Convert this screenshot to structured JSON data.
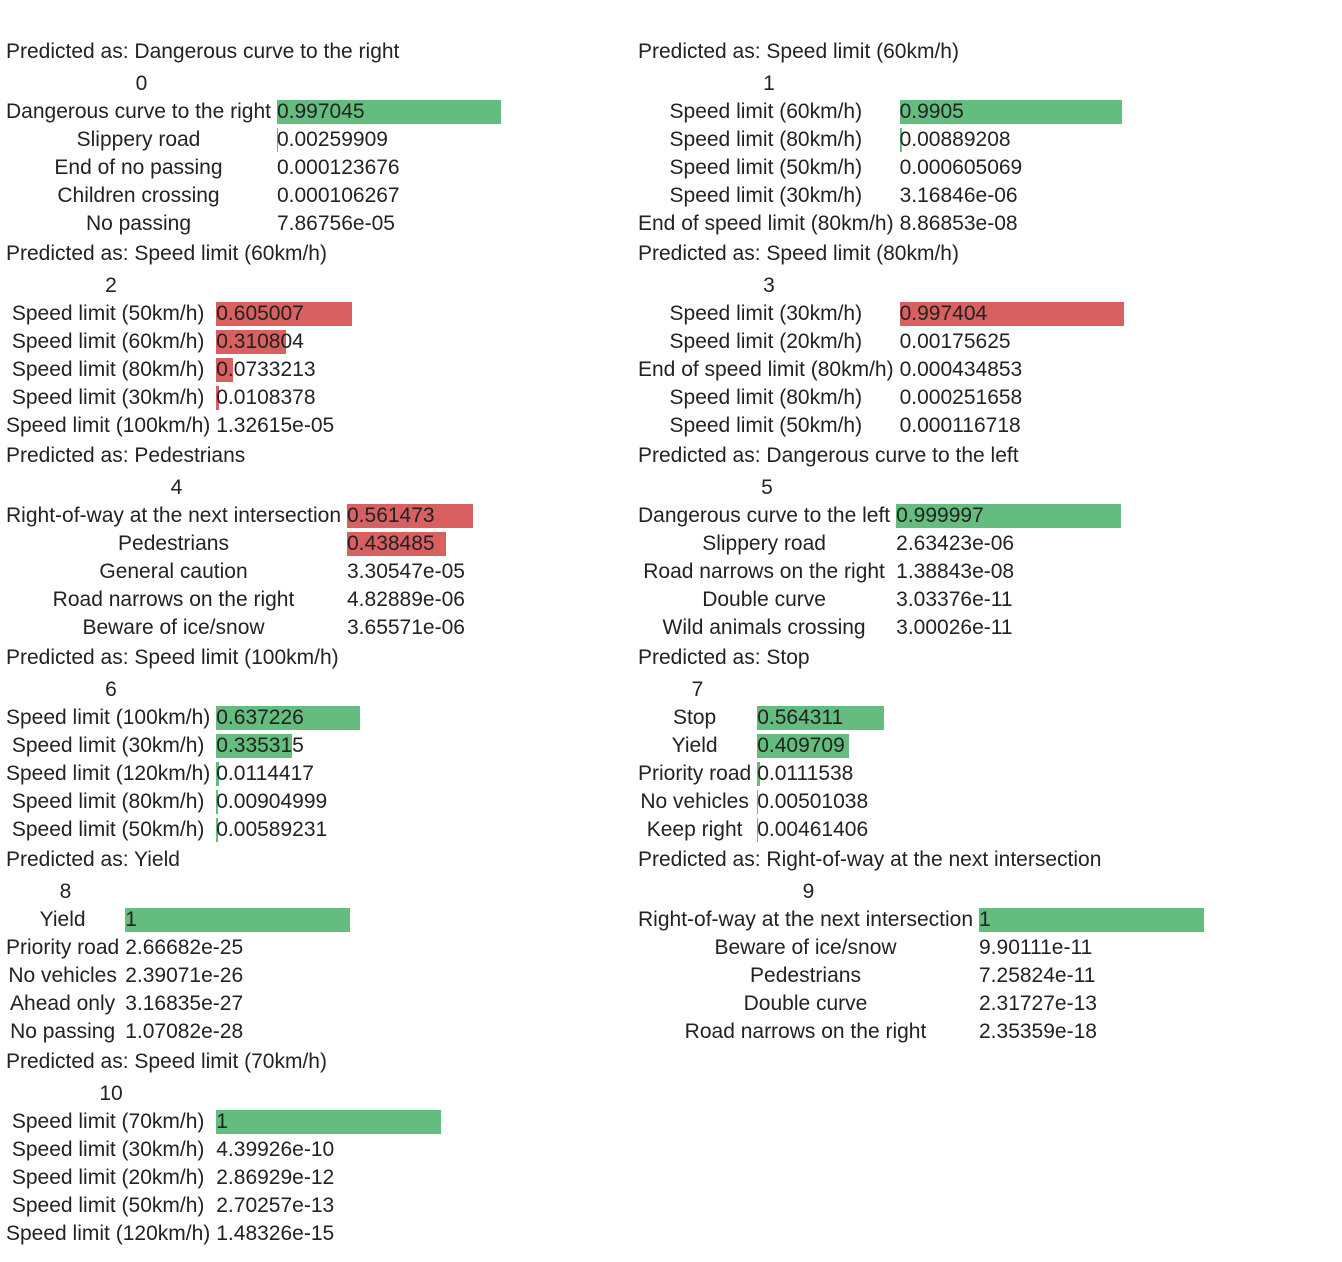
{
  "chart_data": {
    "type": "table",
    "predicted_prefix": "Predicted as: ",
    "bar_scale_max": 1,
    "colors": {
      "correct": "#65bc7f",
      "wrong": "#d86061"
    },
    "panels": [
      {
        "index": "0",
        "predicted": "Dangerous curve to the right",
        "correct": true,
        "rows": [
          {
            "label": "Dangerous curve to the right",
            "value": 0.997045,
            "text": "0.997045"
          },
          {
            "label": "Slippery road",
            "value": 0.00259909,
            "text": "0.00259909"
          },
          {
            "label": "End of no passing",
            "value": 0.000123676,
            "text": "0.000123676"
          },
          {
            "label": "Children crossing",
            "value": 0.000106267,
            "text": "0.000106267"
          },
          {
            "label": "No passing",
            "value": 7.86756e-05,
            "text": "7.86756e-05"
          }
        ]
      },
      {
        "index": "1",
        "predicted": "Speed limit (60km/h)",
        "correct": true,
        "rows": [
          {
            "label": "Speed limit (60km/h)",
            "value": 0.9905,
            "text": "0.9905"
          },
          {
            "label": "Speed limit (80km/h)",
            "value": 0.00889208,
            "text": "0.00889208"
          },
          {
            "label": "Speed limit (50km/h)",
            "value": 0.000605069,
            "text": "0.000605069"
          },
          {
            "label": "Speed limit (30km/h)",
            "value": 3.16846e-06,
            "text": "3.16846e-06"
          },
          {
            "label": "End of speed limit (80km/h)",
            "value": 8.86853e-08,
            "text": "8.86853e-08"
          }
        ]
      },
      {
        "index": "2",
        "predicted": "Speed limit (60km/h)",
        "correct": false,
        "rows": [
          {
            "label": "Speed limit (50km/h)",
            "value": 0.605007,
            "text": "0.605007"
          },
          {
            "label": "Speed limit (60km/h)",
            "value": 0.310804,
            "text": "0.310804"
          },
          {
            "label": "Speed limit (80km/h)",
            "value": 0.0733213,
            "text": "0.0733213"
          },
          {
            "label": "Speed limit (30km/h)",
            "value": 0.0108378,
            "text": "0.0108378"
          },
          {
            "label": "Speed limit (100km/h)",
            "value": 1.32615e-05,
            "text": "1.32615e-05"
          }
        ]
      },
      {
        "index": "3",
        "predicted": "Speed limit (80km/h)",
        "correct": false,
        "rows": [
          {
            "label": "Speed limit (30km/h)",
            "value": 0.997404,
            "text": "0.997404"
          },
          {
            "label": "Speed limit (20km/h)",
            "value": 0.00175625,
            "text": "0.00175625"
          },
          {
            "label": "End of speed limit (80km/h)",
            "value": 0.000434853,
            "text": "0.000434853"
          },
          {
            "label": "Speed limit (80km/h)",
            "value": 0.000251658,
            "text": "0.000251658"
          },
          {
            "label": "Speed limit (50km/h)",
            "value": 0.000116718,
            "text": "0.000116718"
          }
        ]
      },
      {
        "index": "4",
        "predicted": "Pedestrians",
        "correct": false,
        "rows": [
          {
            "label": "Right-of-way at the next intersection",
            "value": 0.561473,
            "text": "0.561473"
          },
          {
            "label": "Pedestrians",
            "value": 0.438485,
            "text": "0.438485"
          },
          {
            "label": "General caution",
            "value": 3.30547e-05,
            "text": "3.30547e-05"
          },
          {
            "label": "Road narrows on the right",
            "value": 4.82889e-06,
            "text": "4.82889e-06"
          },
          {
            "label": "Beware of ice/snow",
            "value": 3.65571e-06,
            "text": "3.65571e-06"
          }
        ]
      },
      {
        "index": "5",
        "predicted": "Dangerous curve to the left",
        "correct": true,
        "rows": [
          {
            "label": "Dangerous curve to the left",
            "value": 0.999997,
            "text": "0.999997"
          },
          {
            "label": "Slippery road",
            "value": 2.63423e-06,
            "text": "2.63423e-06"
          },
          {
            "label": "Road narrows on the right",
            "value": 1.38843e-08,
            "text": "1.38843e-08"
          },
          {
            "label": "Double curve",
            "value": 3.03376e-11,
            "text": "3.03376e-11"
          },
          {
            "label": "Wild animals crossing",
            "value": 3.00026e-11,
            "text": "3.00026e-11"
          }
        ]
      },
      {
        "index": "6",
        "predicted": "Speed limit (100km/h)",
        "correct": true,
        "rows": [
          {
            "label": "Speed limit (100km/h)",
            "value": 0.637226,
            "text": "0.637226"
          },
          {
            "label": "Speed limit (30km/h)",
            "value": 0.335315,
            "text": "0.335315"
          },
          {
            "label": "Speed limit (120km/h)",
            "value": 0.0114417,
            "text": "0.0114417"
          },
          {
            "label": "Speed limit (80km/h)",
            "value": 0.00904999,
            "text": "0.00904999"
          },
          {
            "label": "Speed limit (50km/h)",
            "value": 0.00589231,
            "text": "0.00589231"
          }
        ]
      },
      {
        "index": "7",
        "predicted": "Stop",
        "correct": true,
        "rows": [
          {
            "label": "Stop",
            "value": 0.564311,
            "text": "0.564311"
          },
          {
            "label": "Yield",
            "value": 0.409709,
            "text": "0.409709"
          },
          {
            "label": "Priority road",
            "value": 0.0111538,
            "text": "0.0111538"
          },
          {
            "label": "No vehicles",
            "value": 0.00501038,
            "text": "0.00501038"
          },
          {
            "label": "Keep right",
            "value": 0.00461406,
            "text": "0.00461406"
          }
        ]
      },
      {
        "index": "8",
        "predicted": "Yield",
        "correct": true,
        "rows": [
          {
            "label": "Yield",
            "value": 1,
            "text": "1"
          },
          {
            "label": "Priority road",
            "value": 2.66682e-25,
            "text": "2.66682e-25"
          },
          {
            "label": "No vehicles",
            "value": 2.39071e-26,
            "text": "2.39071e-26"
          },
          {
            "label": "Ahead only",
            "value": 3.16835e-27,
            "text": "3.16835e-27"
          },
          {
            "label": "No passing",
            "value": 1.07082e-28,
            "text": "1.07082e-28"
          }
        ]
      },
      {
        "index": "9",
        "predicted": "Right-of-way at the next intersection",
        "correct": true,
        "rows": [
          {
            "label": "Right-of-way at the next intersection",
            "value": 1,
            "text": "1"
          },
          {
            "label": "Beware of ice/snow",
            "value": 9.90111e-11,
            "text": "9.90111e-11"
          },
          {
            "label": "Pedestrians",
            "value": 7.25824e-11,
            "text": "7.25824e-11"
          },
          {
            "label": "Double curve",
            "value": 2.31727e-13,
            "text": "2.31727e-13"
          },
          {
            "label": "Road narrows on the right",
            "value": 2.35359e-18,
            "text": "2.35359e-18"
          }
        ]
      },
      {
        "index": "10",
        "predicted": "Speed limit (70km/h)",
        "correct": true,
        "rows": [
          {
            "label": "Speed limit (70km/h)",
            "value": 1,
            "text": "1"
          },
          {
            "label": "Speed limit (30km/h)",
            "value": 4.39926e-10,
            "text": "4.39926e-10"
          },
          {
            "label": "Speed limit (20km/h)",
            "value": 2.86929e-12,
            "text": "2.86929e-12"
          },
          {
            "label": "Speed limit (50km/h)",
            "value": 2.70257e-13,
            "text": "2.70257e-13"
          },
          {
            "label": "Speed limit (120km/h)",
            "value": 1.48326e-15,
            "text": "1.48326e-15"
          }
        ]
      }
    ]
  }
}
